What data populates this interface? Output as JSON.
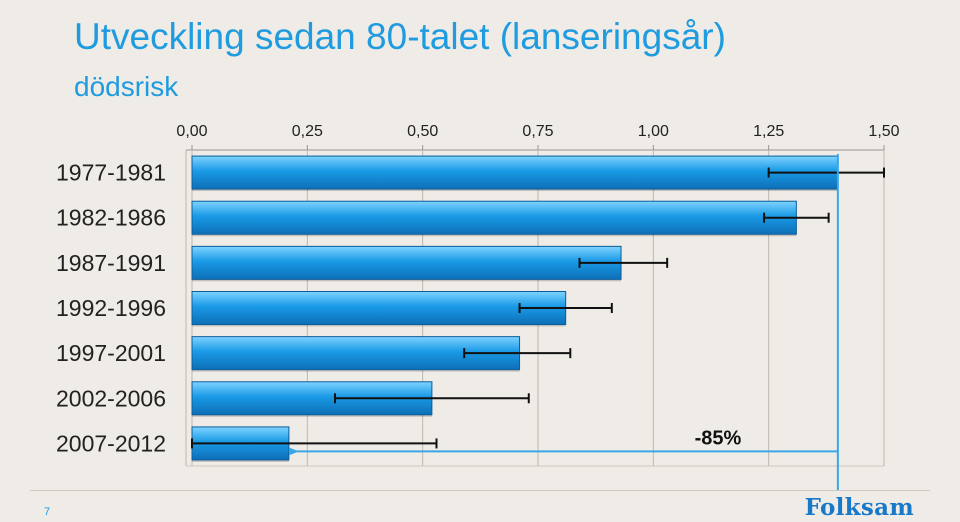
{
  "header": {
    "title": "Utveckling sedan 80-talet (lanseringsår)",
    "subtitle": "dödsrisk"
  },
  "footer": {
    "page_number": "7",
    "logo_text": "Folksam"
  },
  "colors": {
    "accent": "#1f9be0",
    "bar": "#1a9ae6",
    "bar_dark": "#0d6fb7",
    "bar_light": "#7fd3ff",
    "arrow": "#3aa6e6",
    "logo": "#1979c9"
  },
  "chart_data": {
    "type": "bar",
    "orientation": "horizontal",
    "title": "Utveckling sedan 80-talet (lanseringsår)",
    "subtitle": "dödsrisk",
    "categories": [
      "1977-1981",
      "1982-1986",
      "1987-1991",
      "1992-1996",
      "1997-2001",
      "2002-2006",
      "2007-2012"
    ],
    "values": [
      1.4,
      1.31,
      0.93,
      0.81,
      0.71,
      0.52,
      0.21
    ],
    "error_low": [
      1.25,
      1.24,
      0.84,
      0.71,
      0.59,
      0.31,
      0.0
    ],
    "error_high": [
      1.5,
      1.38,
      1.03,
      0.91,
      0.82,
      0.73,
      0.53
    ],
    "xlim": [
      0,
      1.5
    ],
    "xticks": [
      "0,00",
      "0,25",
      "0,50",
      "0,75",
      "1,00",
      "1,25",
      "1,50"
    ],
    "xtick_values": [
      0,
      0.25,
      0.5,
      0.75,
      1.0,
      1.25,
      1.5
    ],
    "x_axis_position": "top",
    "grid": true,
    "reference_value": 1.4,
    "annotation": {
      "text": "-85%",
      "from_value": 1.4,
      "to_value": 0.21
    }
  }
}
